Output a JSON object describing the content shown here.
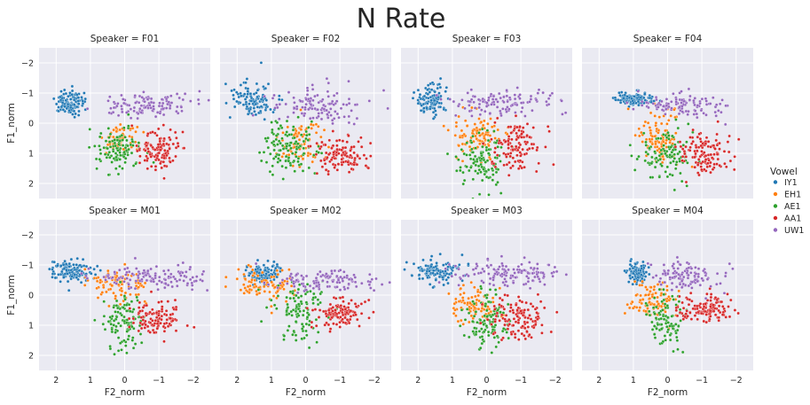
{
  "chart_data": {
    "type": "scatter",
    "title": "N Rate",
    "xlabel": "F2_norm",
    "ylabel": "F1_norm",
    "x_axis": "reversed",
    "y_axis": "reversed",
    "xlim": [
      2.5,
      -2.5
    ],
    "ylim": [
      2.5,
      -2.5
    ],
    "xticks": [
      2,
      1,
      0,
      -1,
      -2
    ],
    "xtick_labels": [
      "2",
      "1",
      "0",
      "−1",
      "−2"
    ],
    "yticks": [
      -2,
      -1,
      0,
      1,
      2
    ],
    "ytick_labels": [
      "−2",
      "−1",
      "0",
      "1",
      "2"
    ],
    "grid": true,
    "legend_title": "Vowel",
    "legend_placement": "right",
    "series": [
      {
        "name": "IY1",
        "color": "#1f77b4"
      },
      {
        "name": "EH1",
        "color": "#ff7f0e"
      },
      {
        "name": "AE1",
        "color": "#2ca02c"
      },
      {
        "name": "AA1",
        "color": "#d62728"
      },
      {
        "name": "UW1",
        "color": "#9467bd"
      }
    ],
    "facets": [
      {
        "title": "Speaker = F01",
        "clusters": {
          "IY1": {
            "cx": 1.6,
            "cy": -0.7,
            "sx": 0.22,
            "sy": 0.2,
            "n": 110
          },
          "EH1": {
            "cx": 0.1,
            "cy": 0.55,
            "sx": 0.3,
            "sy": 0.3,
            "n": 60
          },
          "AE1": {
            "cx": 0.2,
            "cy": 0.9,
            "sx": 0.3,
            "sy": 0.35,
            "n": 110
          },
          "AA1": {
            "cx": -1.0,
            "cy": 0.85,
            "sx": 0.35,
            "sy": 0.3,
            "n": 120
          },
          "UW1": {
            "cx": -0.6,
            "cy": -0.6,
            "sx": 0.7,
            "sy": 0.18,
            "n": 120
          }
        }
      },
      {
        "title": "Speaker = F02",
        "clusters": {
          "IY1": {
            "cx": 1.5,
            "cy": -0.8,
            "sx": 0.35,
            "sy": 0.3,
            "n": 110
          },
          "EH1": {
            "cx": 0.2,
            "cy": 0.7,
            "sx": 0.3,
            "sy": 0.4,
            "n": 90
          },
          "AE1": {
            "cx": 0.4,
            "cy": 0.8,
            "sx": 0.4,
            "sy": 0.45,
            "n": 120
          },
          "AA1": {
            "cx": -1.0,
            "cy": 1.05,
            "sx": 0.4,
            "sy": 0.3,
            "n": 120
          },
          "UW1": {
            "cx": -0.3,
            "cy": -0.6,
            "sx": 0.7,
            "sy": 0.28,
            "n": 120
          }
        }
      },
      {
        "title": "Speaker = F03",
        "clusters": {
          "IY1": {
            "cx": 1.6,
            "cy": -0.75,
            "sx": 0.2,
            "sy": 0.25,
            "n": 110
          },
          "EH1": {
            "cx": 0.3,
            "cy": 0.35,
            "sx": 0.35,
            "sy": 0.35,
            "n": 100
          },
          "AE1": {
            "cx": 0.1,
            "cy": 1.2,
            "sx": 0.35,
            "sy": 0.45,
            "n": 110
          },
          "AA1": {
            "cx": -0.9,
            "cy": 0.8,
            "sx": 0.35,
            "sy": 0.45,
            "n": 120
          },
          "UW1": {
            "cx": -0.5,
            "cy": -0.7,
            "sx": 0.7,
            "sy": 0.22,
            "n": 120
          }
        }
      },
      {
        "title": "Speaker = F04",
        "clusters": {
          "IY1": {
            "cx": 1.0,
            "cy": -0.8,
            "sx": 0.3,
            "sy": 0.12,
            "n": 110
          },
          "EH1": {
            "cx": 0.3,
            "cy": 0.5,
            "sx": 0.3,
            "sy": 0.45,
            "n": 100
          },
          "AE1": {
            "cx": 0.0,
            "cy": 1.1,
            "sx": 0.4,
            "sy": 0.45,
            "n": 110
          },
          "AA1": {
            "cx": -1.1,
            "cy": 1.0,
            "sx": 0.35,
            "sy": 0.35,
            "n": 120
          },
          "UW1": {
            "cx": -0.5,
            "cy": -0.6,
            "sx": 0.6,
            "sy": 0.18,
            "n": 110
          }
        }
      },
      {
        "title": "Speaker = M01",
        "clusters": {
          "IY1": {
            "cx": 1.5,
            "cy": -0.8,
            "sx": 0.35,
            "sy": 0.18,
            "n": 120
          },
          "EH1": {
            "cx": 0.2,
            "cy": -0.35,
            "sx": 0.4,
            "sy": 0.3,
            "n": 90
          },
          "AE1": {
            "cx": 0.1,
            "cy": 0.95,
            "sx": 0.3,
            "sy": 0.45,
            "n": 110
          },
          "AA1": {
            "cx": -1.0,
            "cy": 0.8,
            "sx": 0.35,
            "sy": 0.3,
            "n": 110
          },
          "UW1": {
            "cx": -0.8,
            "cy": -0.6,
            "sx": 0.8,
            "sy": 0.2,
            "n": 130
          }
        }
      },
      {
        "title": "Speaker = M02",
        "clusters": {
          "IY1": {
            "cx": 1.3,
            "cy": -0.75,
            "sx": 0.28,
            "sy": 0.15,
            "n": 110
          },
          "EH1": {
            "cx": 1.2,
            "cy": -0.4,
            "sx": 0.5,
            "sy": 0.3,
            "n": 90
          },
          "AE1": {
            "cx": 0.1,
            "cy": 0.6,
            "sx": 0.4,
            "sy": 0.45,
            "n": 110
          },
          "AA1": {
            "cx": -1.0,
            "cy": 0.6,
            "sx": 0.35,
            "sy": 0.22,
            "n": 120
          },
          "UW1": {
            "cx": -0.6,
            "cy": -0.5,
            "sx": 0.8,
            "sy": 0.18,
            "n": 120
          }
        }
      },
      {
        "title": "Speaker = M03",
        "clusters": {
          "IY1": {
            "cx": 1.5,
            "cy": -0.8,
            "sx": 0.35,
            "sy": 0.2,
            "n": 120
          },
          "EH1": {
            "cx": 0.3,
            "cy": 0.3,
            "sx": 0.35,
            "sy": 0.3,
            "n": 90
          },
          "AE1": {
            "cx": 0.0,
            "cy": 0.8,
            "sx": 0.3,
            "sy": 0.45,
            "n": 110
          },
          "AA1": {
            "cx": -0.9,
            "cy": 0.8,
            "sx": 0.45,
            "sy": 0.35,
            "n": 130
          },
          "UW1": {
            "cx": -0.6,
            "cy": -0.7,
            "sx": 0.8,
            "sy": 0.2,
            "n": 130
          }
        }
      },
      {
        "title": "Speaker = M04",
        "clusters": {
          "IY1": {
            "cx": 0.9,
            "cy": -0.75,
            "sx": 0.15,
            "sy": 0.2,
            "n": 90
          },
          "EH1": {
            "cx": 0.4,
            "cy": 0.2,
            "sx": 0.35,
            "sy": 0.3,
            "n": 100
          },
          "AE1": {
            "cx": 0.0,
            "cy": 0.75,
            "sx": 0.3,
            "sy": 0.4,
            "n": 100
          },
          "AA1": {
            "cx": -1.1,
            "cy": 0.45,
            "sx": 0.4,
            "sy": 0.2,
            "n": 130
          },
          "UW1": {
            "cx": -0.5,
            "cy": -0.6,
            "sx": 0.55,
            "sy": 0.25,
            "n": 110
          }
        }
      }
    ]
  }
}
